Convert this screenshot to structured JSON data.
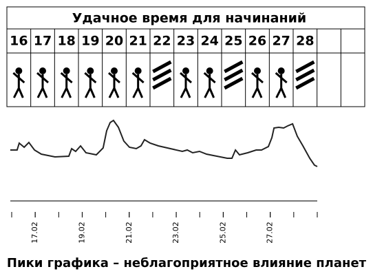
{
  "header": {
    "title": "Удачное время для начинаний"
  },
  "table": {
    "days": [
      "16",
      "17",
      "18",
      "19",
      "20",
      "21",
      "22",
      "23",
      "24",
      "25",
      "26",
      "27",
      "28",
      null,
      null
    ]
  },
  "chart_data": {
    "type": "line",
    "color": "#222222",
    "x": [
      15.94,
      16.23,
      16.32,
      16.53,
      16.73,
      16.97,
      17.26,
      17.84,
      18.43,
      18.55,
      18.72,
      18.93,
      19.16,
      19.6,
      19.89,
      20.04,
      20.19,
      20.33,
      20.54,
      20.77,
      21.01,
      21.3,
      21.5,
      21.65,
      21.89,
      22.24,
      23.26,
      23.47,
      23.7,
      23.99,
      24.29,
      24.58,
      25.17,
      25.37,
      25.52,
      25.69,
      26.04,
      26.4,
      26.63,
      26.92,
      27.07,
      27.16,
      27.36,
      27.57,
      27.74,
      27.95,
      28.15,
      28.39,
      28.68,
      28.88,
      29.0
    ],
    "values": [
      42,
      42,
      52,
      46,
      53,
      42,
      36,
      32,
      33,
      44,
      40,
      48,
      38,
      35,
      45,
      70,
      82,
      85,
      75,
      55,
      46,
      44,
      48,
      57,
      52,
      48,
      40,
      42,
      38,
      40,
      36,
      34,
      30,
      30,
      42,
      35,
      38,
      42,
      42,
      47,
      60,
      74,
      75,
      74,
      77,
      80,
      62,
      48,
      30,
      20,
      18
    ],
    "xlim": [
      16,
      29
    ],
    "ylim": [
      0,
      100
    ],
    "xticks": [
      {
        "value": 17,
        "label": "17.02"
      },
      {
        "value": 19,
        "label": "19.02"
      },
      {
        "value": 21,
        "label": "21.02"
      },
      {
        "value": 23,
        "label": "23.02"
      },
      {
        "value": 25,
        "label": "25.02"
      },
      {
        "value": 27,
        "label": "27.02"
      }
    ],
    "xminorticks": [
      16,
      17,
      18,
      19,
      20,
      21,
      22,
      23,
      24,
      25,
      26,
      27,
      28,
      29
    ]
  },
  "caption": "Пики графика – неблагоприятное влияние планет"
}
